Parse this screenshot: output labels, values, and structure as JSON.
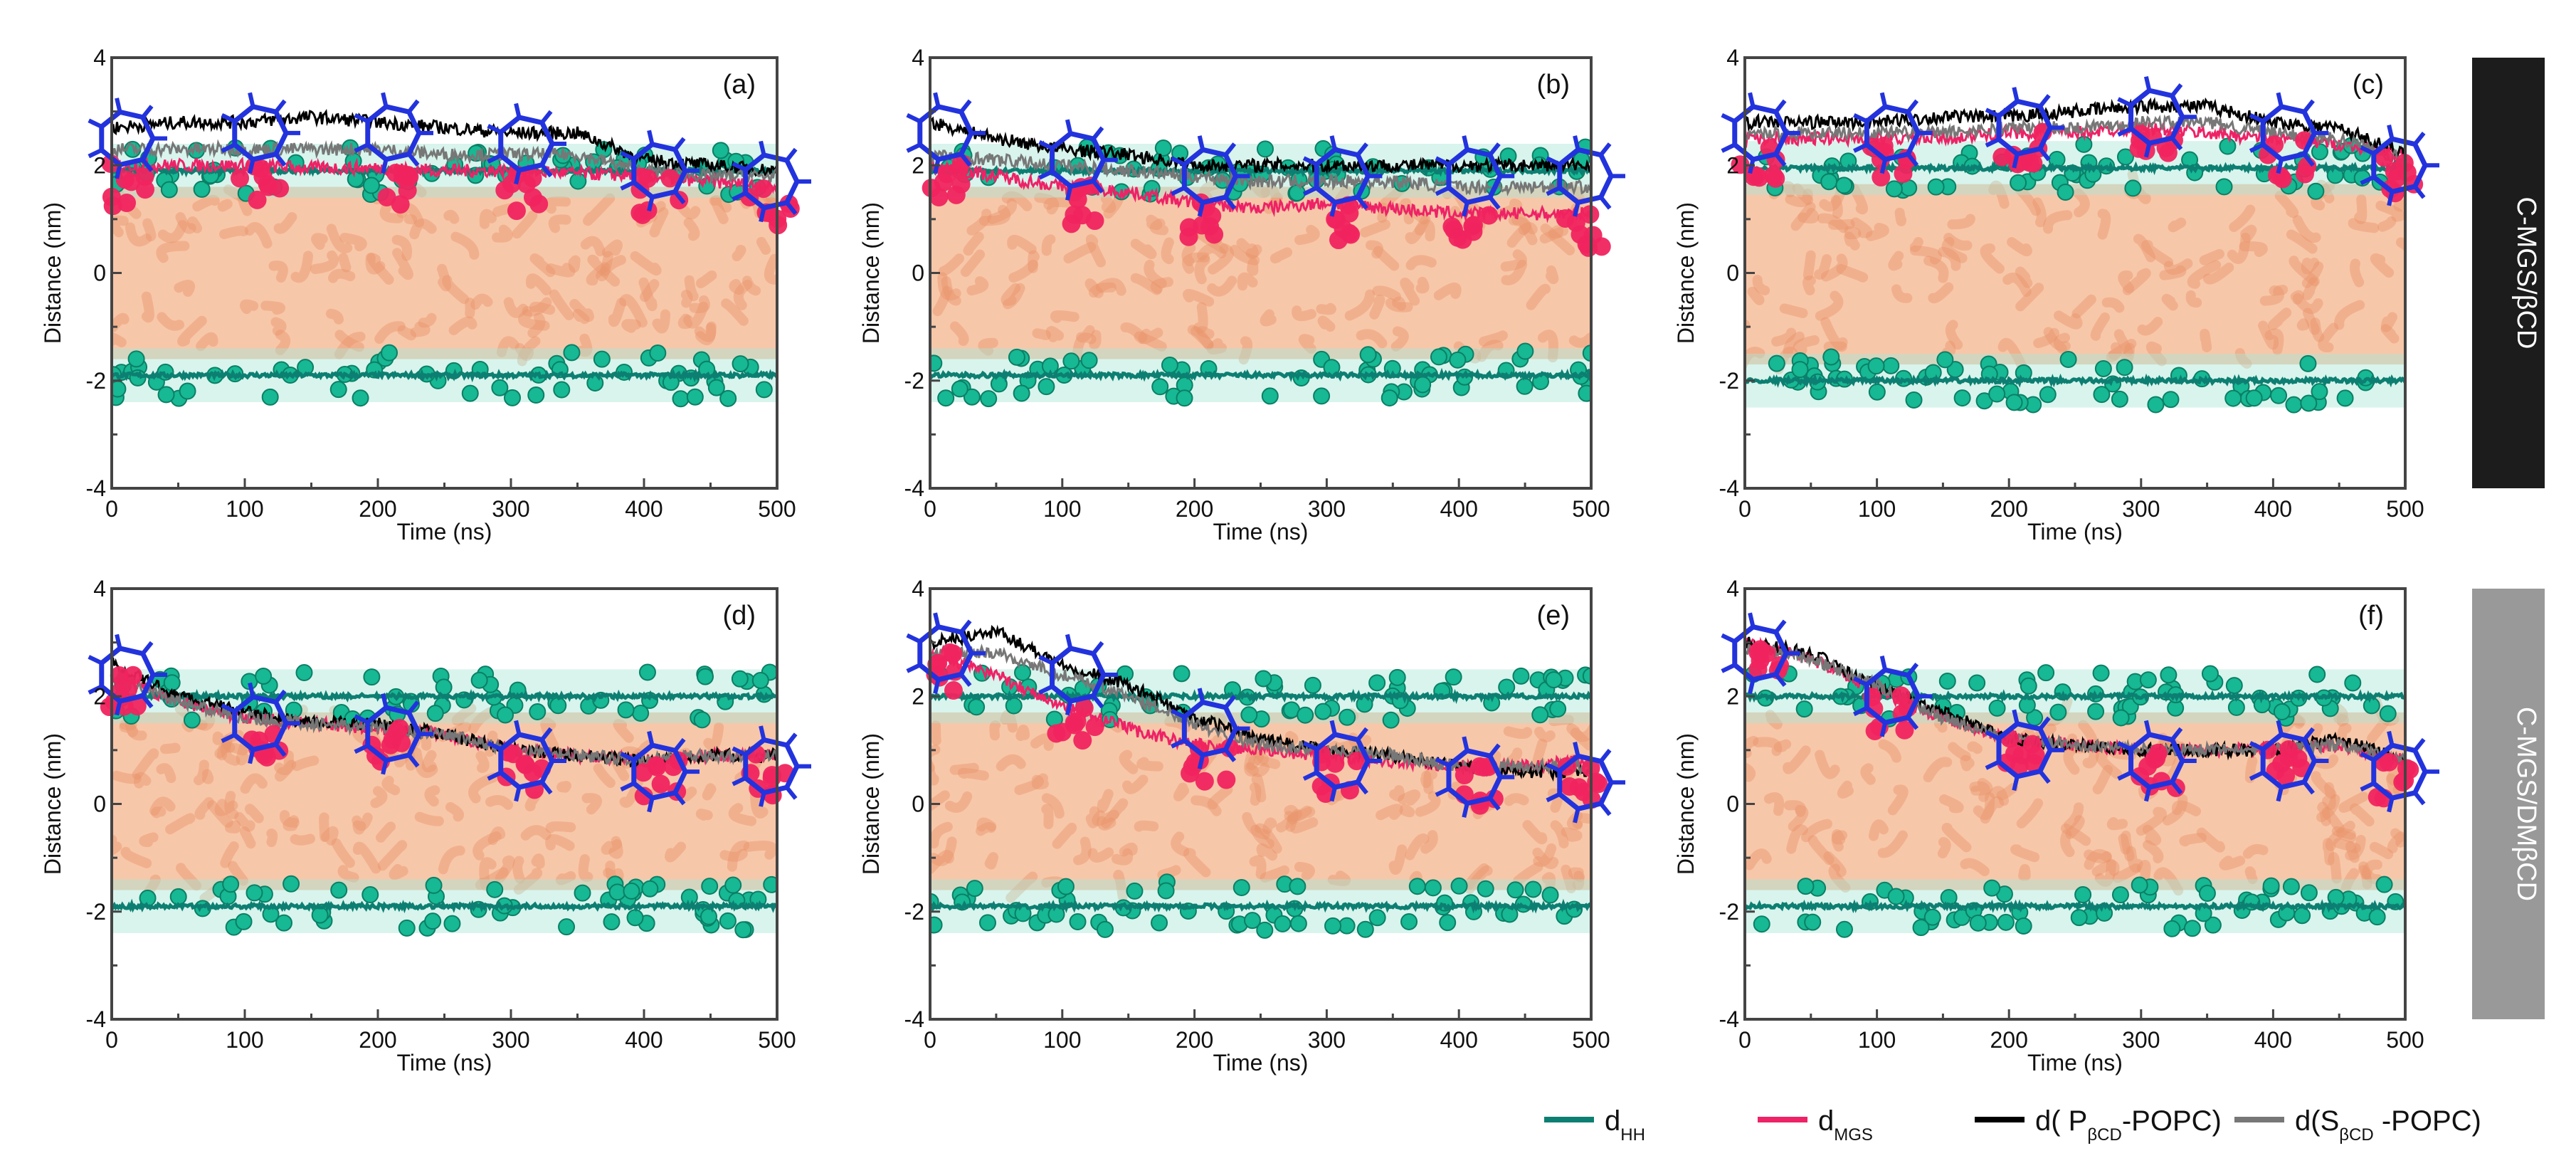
{
  "legend": {
    "items": [
      {
        "name": "d",
        "sub": "HH",
        "suffix": "",
        "color": "#0d7f72"
      },
      {
        "name": "d",
        "sub": "MGS",
        "suffix": "",
        "color": "#ee2266"
      },
      {
        "name": "d( P",
        "sub": "βCD",
        "suffix": "-POPC)",
        "color": "#000000"
      },
      {
        "name": "d(S",
        "sub": "βCD",
        "suffix": " -POPC)",
        "color": "#777777"
      }
    ]
  },
  "row_labels": [
    {
      "text": "C-MGS/βCD",
      "bg": "#1c1c1c",
      "fg": "#ffffff"
    },
    {
      "text": "C-MGS/DMβCD",
      "bg": "#999999",
      "fg": "#ffffff"
    }
  ],
  "chart_data": [
    {
      "type": "line",
      "panel": "(a)",
      "xlabel": "Time (ns)",
      "ylabel": "Distance (nm)",
      "xlim": [
        0,
        500
      ],
      "ylim": [
        -4,
        4
      ],
      "xticks": [
        "0",
        "100",
        "200",
        "300",
        "400",
        "500"
      ],
      "yticks": [
        "4",
        "2",
        "0",
        "-2",
        "-4"
      ],
      "x": [
        0,
        50,
        100,
        150,
        200,
        250,
        300,
        350,
        400,
        450,
        500
      ],
      "series": [
        {
          "name": "dHH upper",
          "values": [
            1.9,
            1.9,
            1.9,
            1.9,
            1.9,
            1.9,
            1.9,
            1.9,
            1.9,
            1.9,
            1.9
          ]
        },
        {
          "name": "dHH lower",
          "values": [
            -1.9,
            -1.9,
            -1.9,
            -1.9,
            -1.9,
            -1.9,
            -1.9,
            -1.9,
            -1.9,
            -1.9,
            -1.9
          ]
        },
        {
          "name": "dMGS",
          "values": [
            2.0,
            2.0,
            2.0,
            1.95,
            1.95,
            1.9,
            1.9,
            1.85,
            1.8,
            1.7,
            1.6
          ]
        },
        {
          "name": "d(PβCD-POPC)",
          "values": [
            2.7,
            2.8,
            2.8,
            2.9,
            2.8,
            2.7,
            2.6,
            2.6,
            2.1,
            2.0,
            1.9
          ]
        },
        {
          "name": "d(SβCD-POPC)",
          "values": [
            2.3,
            2.3,
            2.3,
            2.3,
            2.3,
            2.2,
            2.2,
            2.2,
            1.9,
            1.8,
            1.8
          ]
        }
      ]
    },
    {
      "type": "line",
      "panel": "(b)",
      "xlabel": "Time (ns)",
      "ylabel": "Distance (nm)",
      "xlim": [
        0,
        500
      ],
      "ylim": [
        -4,
        4
      ],
      "xticks": [
        "0",
        "100",
        "200",
        "300",
        "400",
        "500"
      ],
      "yticks": [
        "4",
        "2",
        "0",
        "-2",
        "-4"
      ],
      "x": [
        0,
        50,
        100,
        150,
        200,
        250,
        300,
        350,
        400,
        450,
        500
      ],
      "series": [
        {
          "name": "dHH upper",
          "values": [
            1.9,
            1.9,
            1.9,
            1.9,
            1.9,
            1.9,
            1.9,
            1.9,
            1.9,
            1.9,
            1.9
          ]
        },
        {
          "name": "dHH lower",
          "values": [
            -1.9,
            -1.9,
            -1.9,
            -1.9,
            -1.9,
            -1.9,
            -1.9,
            -1.9,
            -1.9,
            -1.9,
            -1.9
          ]
        },
        {
          "name": "dMGS",
          "values": [
            2.0,
            1.8,
            1.6,
            1.5,
            1.3,
            1.2,
            1.3,
            1.2,
            1.1,
            1.1,
            1.1
          ]
        },
        {
          "name": "d(PβCD-POPC)",
          "values": [
            2.8,
            2.5,
            2.3,
            2.2,
            2.0,
            2.0,
            2.0,
            2.0,
            2.0,
            2.0,
            2.0
          ]
        },
        {
          "name": "d(SβCD-POPC)",
          "values": [
            2.2,
            2.1,
            2.0,
            1.9,
            1.8,
            1.7,
            1.7,
            1.7,
            1.6,
            1.6,
            1.6
          ]
        }
      ]
    },
    {
      "type": "line",
      "panel": "(c)",
      "xlabel": "Time (ns)",
      "ylabel": "Distance (nm)",
      "xlim": [
        0,
        500
      ],
      "ylim": [
        -4,
        4
      ],
      "xticks": [
        "0",
        "100",
        "200",
        "300",
        "400",
        "500"
      ],
      "yticks": [
        "4",
        "2",
        "0",
        "-2",
        "-4"
      ],
      "x": [
        0,
        50,
        100,
        150,
        200,
        250,
        300,
        350,
        400,
        450,
        500
      ],
      "series": [
        {
          "name": "dHH upper",
          "values": [
            1.95,
            1.95,
            1.95,
            1.95,
            1.95,
            1.95,
            1.95,
            1.95,
            1.95,
            1.95,
            1.95
          ]
        },
        {
          "name": "dHH lower",
          "values": [
            -2.0,
            -2.0,
            -2.0,
            -2.0,
            -2.0,
            -2.0,
            -2.0,
            -2.0,
            -2.0,
            -2.0,
            -2.0
          ]
        },
        {
          "name": "dMGS",
          "values": [
            2.5,
            2.5,
            2.5,
            2.5,
            2.6,
            2.6,
            2.7,
            2.6,
            2.5,
            2.4,
            2.2
          ]
        },
        {
          "name": "d(PβCD-POPC)",
          "values": [
            2.8,
            2.8,
            2.8,
            2.9,
            2.9,
            3.0,
            3.1,
            3.1,
            2.8,
            2.7,
            2.2
          ]
        },
        {
          "name": "d(SβCD-POPC)",
          "values": [
            2.6,
            2.6,
            2.6,
            2.6,
            2.7,
            2.7,
            2.8,
            2.8,
            2.6,
            2.5,
            2.1
          ]
        }
      ]
    },
    {
      "type": "line",
      "panel": "(d)",
      "xlabel": "Time (ns)",
      "ylabel": "Distance (nm)",
      "xlim": [
        0,
        500
      ],
      "ylim": [
        -4,
        4
      ],
      "xticks": [
        "0",
        "100",
        "200",
        "300",
        "400",
        "500"
      ],
      "yticks": [
        "4",
        "2",
        "0",
        "-2",
        "-4"
      ],
      "x": [
        0,
        50,
        100,
        150,
        200,
        250,
        300,
        350,
        400,
        450,
        500
      ],
      "series": [
        {
          "name": "dHH upper",
          "values": [
            2.0,
            2.0,
            2.0,
            2.0,
            2.0,
            2.0,
            2.0,
            2.0,
            2.0,
            2.0,
            2.0
          ]
        },
        {
          "name": "dHH lower",
          "values": [
            -1.9,
            -1.9,
            -1.9,
            -1.9,
            -1.9,
            -1.9,
            -1.9,
            -1.9,
            -1.9,
            -1.9,
            -1.9
          ]
        },
        {
          "name": "dMGS",
          "values": [
            2.4,
            1.9,
            1.6,
            1.5,
            1.4,
            1.3,
            1.0,
            0.9,
            0.8,
            0.9,
            0.9
          ]
        },
        {
          "name": "d(PβCD-POPC)",
          "values": [
            2.6,
            2.0,
            1.7,
            1.5,
            1.5,
            1.3,
            1.0,
            0.9,
            0.8,
            0.9,
            0.9
          ]
        },
        {
          "name": "d(SβCD-POPC)",
          "values": [
            2.4,
            1.9,
            1.6,
            1.5,
            1.4,
            1.3,
            1.0,
            0.9,
            0.8,
            0.9,
            0.9
          ]
        }
      ]
    },
    {
      "type": "line",
      "panel": "(e)",
      "xlabel": "Time (ns)",
      "ylabel": "Distance (nm)",
      "xlim": [
        0,
        500
      ],
      "ylim": [
        -4,
        4
      ],
      "xticks": [
        "0",
        "100",
        "200",
        "300",
        "400",
        "500"
      ],
      "yticks": [
        "4",
        "2",
        "0",
        "-2",
        "-4"
      ],
      "x": [
        0,
        50,
        100,
        150,
        200,
        250,
        300,
        350,
        400,
        450,
        500
      ],
      "series": [
        {
          "name": "dHH upper",
          "values": [
            2.0,
            2.0,
            2.0,
            2.0,
            2.0,
            2.0,
            2.0,
            2.0,
            2.0,
            2.0,
            2.0
          ]
        },
        {
          "name": "dHH lower",
          "values": [
            -1.9,
            -1.9,
            -1.9,
            -1.9,
            -1.9,
            -1.9,
            -1.9,
            -1.9,
            -1.9,
            -1.9,
            -1.9
          ]
        },
        {
          "name": "dMGS",
          "values": [
            2.8,
            2.4,
            1.8,
            1.4,
            1.1,
            1.0,
            0.9,
            0.8,
            0.7,
            0.7,
            0.8
          ]
        },
        {
          "name": "d(PβCD-POPC)",
          "values": [
            3.0,
            3.2,
            2.6,
            2.2,
            1.6,
            1.2,
            1.0,
            0.9,
            0.7,
            0.6,
            0.6
          ]
        },
        {
          "name": "d(SβCD-POPC)",
          "values": [
            2.8,
            2.8,
            2.4,
            2.0,
            1.5,
            1.1,
            1.0,
            0.9,
            0.7,
            0.7,
            0.7
          ]
        }
      ]
    },
    {
      "type": "line",
      "panel": "(f)",
      "xlabel": "Time (ns)",
      "ylabel": "Distance (nm)",
      "xlim": [
        0,
        500
      ],
      "ylim": [
        -4,
        4
      ],
      "xticks": [
        "0",
        "100",
        "200",
        "300",
        "400",
        "500"
      ],
      "yticks": [
        "4",
        "2",
        "0",
        "-2",
        "-4"
      ],
      "x": [
        0,
        50,
        100,
        150,
        200,
        250,
        300,
        350,
        400,
        450,
        500
      ],
      "series": [
        {
          "name": "dHH upper",
          "values": [
            2.0,
            2.0,
            2.0,
            2.0,
            2.0,
            2.0,
            2.0,
            2.0,
            2.0,
            2.0,
            2.0
          ]
        },
        {
          "name": "dHH lower",
          "values": [
            -1.9,
            -1.9,
            -1.9,
            -1.9,
            -1.9,
            -1.9,
            -1.9,
            -1.9,
            -1.9,
            -1.9,
            -1.9
          ]
        },
        {
          "name": "dMGS",
          "values": [
            3.0,
            2.7,
            2.1,
            1.6,
            1.2,
            1.1,
            1.0,
            1.0,
            1.0,
            1.1,
            0.8
          ]
        },
        {
          "name": "d(PβCD-POPC)",
          "values": [
            3.0,
            2.8,
            2.2,
            1.7,
            1.2,
            1.1,
            1.0,
            1.0,
            1.0,
            1.2,
            0.8
          ]
        },
        {
          "name": "d(SβCD-POPC)",
          "values": [
            2.9,
            2.7,
            2.2,
            1.6,
            1.2,
            1.1,
            1.0,
            1.0,
            1.0,
            1.1,
            0.8
          ]
        }
      ]
    }
  ]
}
